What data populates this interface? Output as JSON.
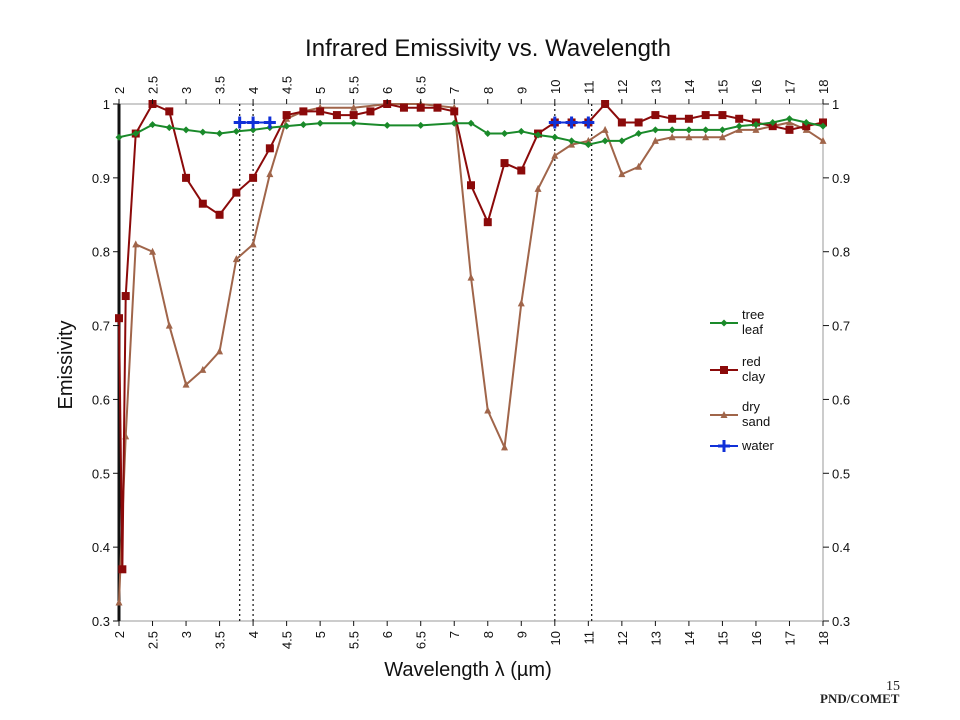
{
  "chart_data": {
    "type": "line",
    "title": "Infrared Emissivity vs. Wavelength",
    "xlabel": "Wavelength λ (µm)",
    "ylabel": "Emissivity",
    "xlim": [
      2,
      18
    ],
    "ylim": [
      0.3,
      1.0
    ],
    "x_ticks": [
      "2",
      "2.5",
      "3",
      "3.5",
      "4",
      "4.5",
      "5",
      "5.5",
      "6",
      "6.5",
      "7",
      "8",
      "9",
      "10",
      "11",
      "12",
      "13",
      "14",
      "15",
      "16",
      "17",
      "18"
    ],
    "y_ticks": [
      "0.3",
      "0.4",
      "0.5",
      "0.6",
      "0.7",
      "0.8",
      "0.9",
      "1"
    ],
    "y_right_ticks": [
      "0.3",
      "0.4",
      "0.5",
      "0.6",
      "0.7",
      "0.8",
      "0.9",
      "1"
    ],
    "vlines": [
      3.8,
      4.0,
      10.0,
      11.1
    ],
    "grid": false,
    "legend_position": "right",
    "series": [
      {
        "name": "tree leaf",
        "legend_lines": [
          "tree",
          "leaf"
        ],
        "color": "#1a8a2a",
        "marker": "diamond",
        "points": [
          [
            2.0,
            0.955
          ],
          [
            2.25,
            0.96
          ],
          [
            2.5,
            0.972
          ],
          [
            2.75,
            0.968
          ],
          [
            3.0,
            0.965
          ],
          [
            3.25,
            0.962
          ],
          [
            3.5,
            0.96
          ],
          [
            3.75,
            0.963
          ],
          [
            4.0,
            0.965
          ],
          [
            4.25,
            0.968
          ],
          [
            4.5,
            0.97
          ],
          [
            4.75,
            0.972
          ],
          [
            5.0,
            0.974
          ],
          [
            5.5,
            0.974
          ],
          [
            6.0,
            0.971
          ],
          [
            6.5,
            0.971
          ],
          [
            7.0,
            0.974
          ],
          [
            7.5,
            0.974
          ],
          [
            8.0,
            0.96
          ],
          [
            8.5,
            0.96
          ],
          [
            9.0,
            0.963
          ],
          [
            9.5,
            0.958
          ],
          [
            10.0,
            0.955
          ],
          [
            10.5,
            0.95
          ],
          [
            11.0,
            0.945
          ],
          [
            11.5,
            0.95
          ],
          [
            12.0,
            0.95
          ],
          [
            12.5,
            0.96
          ],
          [
            13.0,
            0.965
          ],
          [
            13.5,
            0.965
          ],
          [
            14.0,
            0.965
          ],
          [
            14.5,
            0.965
          ],
          [
            15.0,
            0.965
          ],
          [
            15.5,
            0.97
          ],
          [
            16.0,
            0.972
          ],
          [
            16.5,
            0.975
          ],
          [
            17.0,
            0.98
          ],
          [
            17.5,
            0.975
          ],
          [
            18.0,
            0.97
          ]
        ]
      },
      {
        "name": "red clay",
        "legend_lines": [
          "red",
          "clay"
        ],
        "color": "#8b0a0a",
        "marker": "square",
        "points": [
          [
            2.0,
            0.71
          ],
          [
            2.05,
            0.37
          ],
          [
            2.1,
            0.74
          ],
          [
            2.25,
            0.96
          ],
          [
            2.5,
            1.0
          ],
          [
            2.75,
            0.99
          ],
          [
            3.0,
            0.9
          ],
          [
            3.25,
            0.865
          ],
          [
            3.5,
            0.85
          ],
          [
            3.75,
            0.88
          ],
          [
            4.0,
            0.9
          ],
          [
            4.25,
            0.94
          ],
          [
            4.5,
            0.985
          ],
          [
            4.75,
            0.99
          ],
          [
            5.0,
            0.99
          ],
          [
            5.25,
            0.985
          ],
          [
            5.5,
            0.985
          ],
          [
            5.75,
            0.99
          ],
          [
            6.0,
            1.0
          ],
          [
            6.25,
            0.995
          ],
          [
            6.5,
            0.995
          ],
          [
            6.75,
            0.995
          ],
          [
            7.0,
            0.99
          ],
          [
            7.5,
            0.89
          ],
          [
            8.0,
            0.84
          ],
          [
            8.5,
            0.92
          ],
          [
            9.0,
            0.91
          ],
          [
            9.5,
            0.96
          ],
          [
            10.0,
            0.975
          ],
          [
            10.5,
            0.975
          ],
          [
            11.0,
            0.975
          ],
          [
            11.5,
            1.0
          ],
          [
            12.0,
            0.975
          ],
          [
            12.5,
            0.975
          ],
          [
            13.0,
            0.985
          ],
          [
            13.5,
            0.98
          ],
          [
            14.0,
            0.98
          ],
          [
            14.5,
            0.985
          ],
          [
            15.0,
            0.985
          ],
          [
            15.5,
            0.98
          ],
          [
            16.0,
            0.975
          ],
          [
            16.5,
            0.97
          ],
          [
            17.0,
            0.965
          ],
          [
            17.5,
            0.97
          ],
          [
            18.0,
            0.975
          ]
        ]
      },
      {
        "name": "dry sand",
        "legend_lines": [
          "dry",
          "sand"
        ],
        "color": "#a0654a",
        "marker": "triangle",
        "points": [
          [
            2.0,
            0.325
          ],
          [
            2.1,
            0.55
          ],
          [
            2.25,
            0.81
          ],
          [
            2.5,
            0.8
          ],
          [
            2.75,
            0.7
          ],
          [
            3.0,
            0.62
          ],
          [
            3.25,
            0.64
          ],
          [
            3.5,
            0.665
          ],
          [
            3.75,
            0.79
          ],
          [
            4.0,
            0.81
          ],
          [
            4.25,
            0.905
          ],
          [
            4.5,
            0.98
          ],
          [
            4.75,
            0.99
          ],
          [
            5.0,
            0.995
          ],
          [
            5.5,
            0.995
          ],
          [
            6.0,
            1.0
          ],
          [
            6.5,
            1.0
          ],
          [
            7.0,
            0.995
          ],
          [
            7.5,
            0.765
          ],
          [
            8.0,
            0.585
          ],
          [
            8.5,
            0.535
          ],
          [
            9.0,
            0.73
          ],
          [
            9.5,
            0.885
          ],
          [
            10.0,
            0.93
          ],
          [
            10.5,
            0.945
          ],
          [
            11.0,
            0.95
          ],
          [
            11.5,
            0.965
          ],
          [
            12.0,
            0.905
          ],
          [
            12.5,
            0.915
          ],
          [
            13.0,
            0.95
          ],
          [
            13.5,
            0.955
          ],
          [
            14.0,
            0.955
          ],
          [
            14.5,
            0.955
          ],
          [
            15.0,
            0.955
          ],
          [
            15.5,
            0.965
          ],
          [
            16.0,
            0.965
          ],
          [
            16.5,
            0.97
          ],
          [
            17.0,
            0.975
          ],
          [
            17.5,
            0.965
          ],
          [
            18.0,
            0.95
          ]
        ]
      },
      {
        "name": "water",
        "legend_lines": [
          "water"
        ],
        "color": "#1030d8",
        "marker": "plus",
        "points": [
          [
            3.8,
            0.975
          ],
          [
            4.0,
            0.975
          ],
          [
            4.25,
            0.975
          ],
          [
            10.0,
            0.975
          ],
          [
            10.5,
            0.975
          ],
          [
            11.0,
            0.975
          ]
        ]
      }
    ]
  },
  "footer": {
    "credit": "PND/COMET",
    "page_number": "15"
  }
}
